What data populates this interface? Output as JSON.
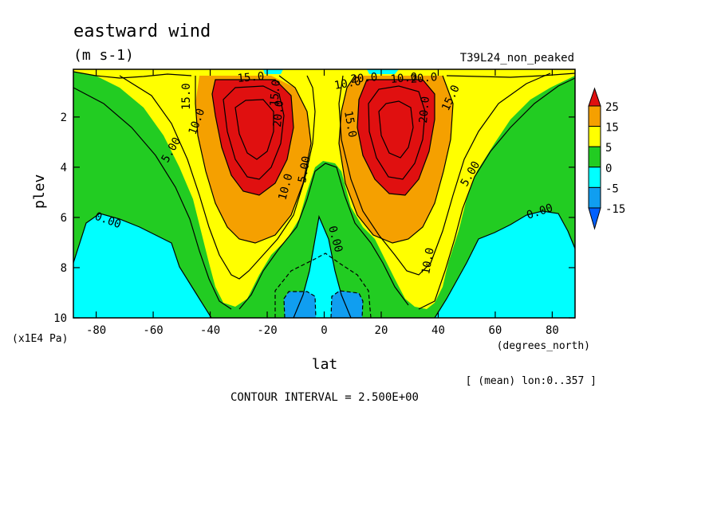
{
  "chart_data": {
    "type": "contour",
    "title": "eastward wind",
    "units": "(m s-1)",
    "run_label": "T39L24_non_peaked",
    "xlabel": "lat",
    "xunits": "(degrees_north)",
    "ylabel": "plev",
    "yunits": "(x1E4 Pa)",
    "xlim": [
      -88,
      88
    ],
    "ylim": [
      10,
      0.1
    ],
    "y_axis_inverted": true,
    "x_ticks": [
      "-80",
      "-60",
      "-40",
      "-20",
      "0",
      "20",
      "40",
      "60",
      "80"
    ],
    "x_tick_values": [
      -80,
      -60,
      -40,
      -20,
      0,
      20,
      40,
      60,
      80
    ],
    "y_ticks": [
      "2",
      "4",
      "6",
      "8",
      "10"
    ],
    "y_tick_values": [
      2,
      4,
      6,
      8,
      10
    ],
    "mean_note": "[ (mean) lon:0..357 ]",
    "contour_interval_text": "CONTOUR INTERVAL = 2.500E+00",
    "contour_interval": 2.5,
    "contour_labels": [
      "15.0",
      "10.0",
      "5.00",
      "0.00",
      "10.0",
      "5.00",
      "0.00",
      "15.0",
      "10.0",
      "5.00",
      "0.00",
      "10.0",
      "15.0",
      "20.0",
      "20.0",
      "15.0",
      "20.0",
      "10.0",
      "15.0",
      "20.0"
    ],
    "legend": {
      "position": "right",
      "labels": [
        "25",
        "15",
        "5",
        "0",
        "-5",
        "-15"
      ],
      "colors": [
        "#e01010",
        "#f5a000",
        "#ffff00",
        "#22cc22",
        "#00ffff",
        "#109ef0",
        "#0060ff"
      ]
    },
    "field": {
      "description_values": "zonal-mean eastward wind, two subtropical westerly jets",
      "jet_max_ms": 25,
      "jet_lat": [
        -27,
        27
      ],
      "jet_plev": 2,
      "min_ms": -15
    }
  }
}
